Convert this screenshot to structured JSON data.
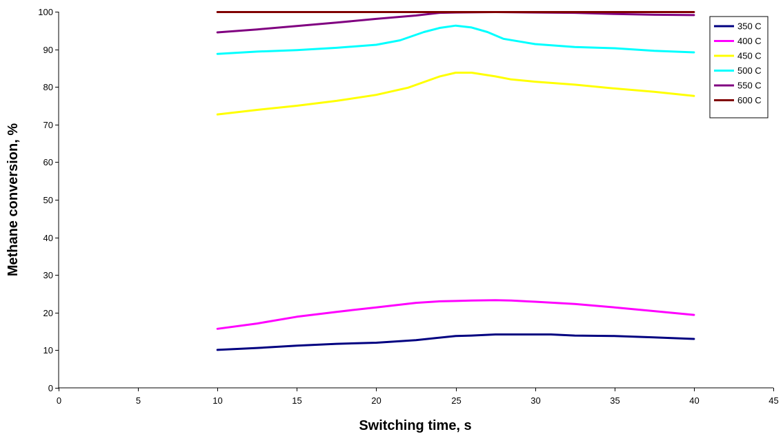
{
  "chart_data": {
    "type": "line",
    "title": "",
    "xlabel": "Switching time, s",
    "ylabel": "Methane conversion, %",
    "xlim": [
      0,
      45
    ],
    "ylim": [
      0,
      100
    ],
    "xticks": [
      0,
      5,
      10,
      15,
      20,
      25,
      30,
      35,
      40,
      45
    ],
    "yticks": [
      0,
      10,
      20,
      30,
      40,
      50,
      60,
      70,
      80,
      90,
      100
    ],
    "grid": false,
    "legend_position": "top-right",
    "series": [
      {
        "name": "350 C",
        "color": "#000080",
        "points": [
          [
            10,
            10.1
          ],
          [
            12.5,
            10.6
          ],
          [
            15,
            11.2
          ],
          [
            17.5,
            11.7
          ],
          [
            20,
            12.0
          ],
          [
            22.5,
            12.7
          ],
          [
            25,
            13.8
          ],
          [
            26,
            13.9
          ],
          [
            27.5,
            14.2
          ],
          [
            30,
            14.2
          ],
          [
            31,
            14.2
          ],
          [
            32.5,
            13.9
          ],
          [
            35,
            13.8
          ],
          [
            37.5,
            13.4
          ],
          [
            40,
            13.0
          ]
        ]
      },
      {
        "name": "400 C",
        "color": "#FF00FF",
        "points": [
          [
            10,
            15.7
          ],
          [
            12.5,
            17.1
          ],
          [
            15,
            18.9
          ],
          [
            17.5,
            20.2
          ],
          [
            20,
            21.4
          ],
          [
            22.5,
            22.6
          ],
          [
            24,
            23.0
          ],
          [
            25,
            23.1
          ],
          [
            26,
            23.2
          ],
          [
            27.5,
            23.3
          ],
          [
            28.5,
            23.2
          ],
          [
            30,
            22.9
          ],
          [
            32.5,
            22.3
          ],
          [
            35,
            21.4
          ],
          [
            37.5,
            20.4
          ],
          [
            40,
            19.4
          ]
        ]
      },
      {
        "name": "450 C",
        "color": "#FFFF00",
        "points": [
          [
            10,
            72.7
          ],
          [
            12.5,
            73.9
          ],
          [
            15,
            75.0
          ],
          [
            17.5,
            76.3
          ],
          [
            20,
            77.9
          ],
          [
            22,
            79.8
          ],
          [
            24,
            82.8
          ],
          [
            25,
            83.8
          ],
          [
            26,
            83.8
          ],
          [
            27.5,
            82.8
          ],
          [
            28.5,
            82.0
          ],
          [
            30,
            81.4
          ],
          [
            32.5,
            80.6
          ],
          [
            35,
            79.6
          ],
          [
            37.5,
            78.7
          ],
          [
            40,
            77.6
          ]
        ]
      },
      {
        "name": "500 C",
        "color": "#00FFFF",
        "points": [
          [
            10,
            88.8
          ],
          [
            12.5,
            89.4
          ],
          [
            15,
            89.8
          ],
          [
            17.5,
            90.4
          ],
          [
            20,
            91.2
          ],
          [
            21.5,
            92.4
          ],
          [
            23,
            94.6
          ],
          [
            24,
            95.7
          ],
          [
            25,
            96.3
          ],
          [
            26,
            95.8
          ],
          [
            27,
            94.6
          ],
          [
            28,
            92.8
          ],
          [
            30,
            91.4
          ],
          [
            32.5,
            90.6
          ],
          [
            35,
            90.3
          ],
          [
            37.5,
            89.6
          ],
          [
            40,
            89.2
          ]
        ]
      },
      {
        "name": "550 C",
        "color": "#800080",
        "points": [
          [
            10,
            94.5
          ],
          [
            12.5,
            95.3
          ],
          [
            15,
            96.2
          ],
          [
            17.5,
            97.1
          ],
          [
            20,
            98.1
          ],
          [
            22.5,
            99.0
          ],
          [
            24,
            99.7
          ],
          [
            25,
            99.8
          ],
          [
            27.5,
            99.9
          ],
          [
            30,
            99.8
          ],
          [
            32.5,
            99.7
          ],
          [
            35,
            99.4
          ],
          [
            37.5,
            99.2
          ],
          [
            40,
            99.1
          ]
        ]
      },
      {
        "name": "600 C",
        "color": "#800000",
        "points": [
          [
            10,
            99.9
          ],
          [
            15,
            99.9
          ],
          [
            20,
            99.9
          ],
          [
            25,
            99.9
          ],
          [
            30,
            99.9
          ],
          [
            35,
            99.9
          ],
          [
            40,
            99.9
          ]
        ]
      }
    ]
  }
}
